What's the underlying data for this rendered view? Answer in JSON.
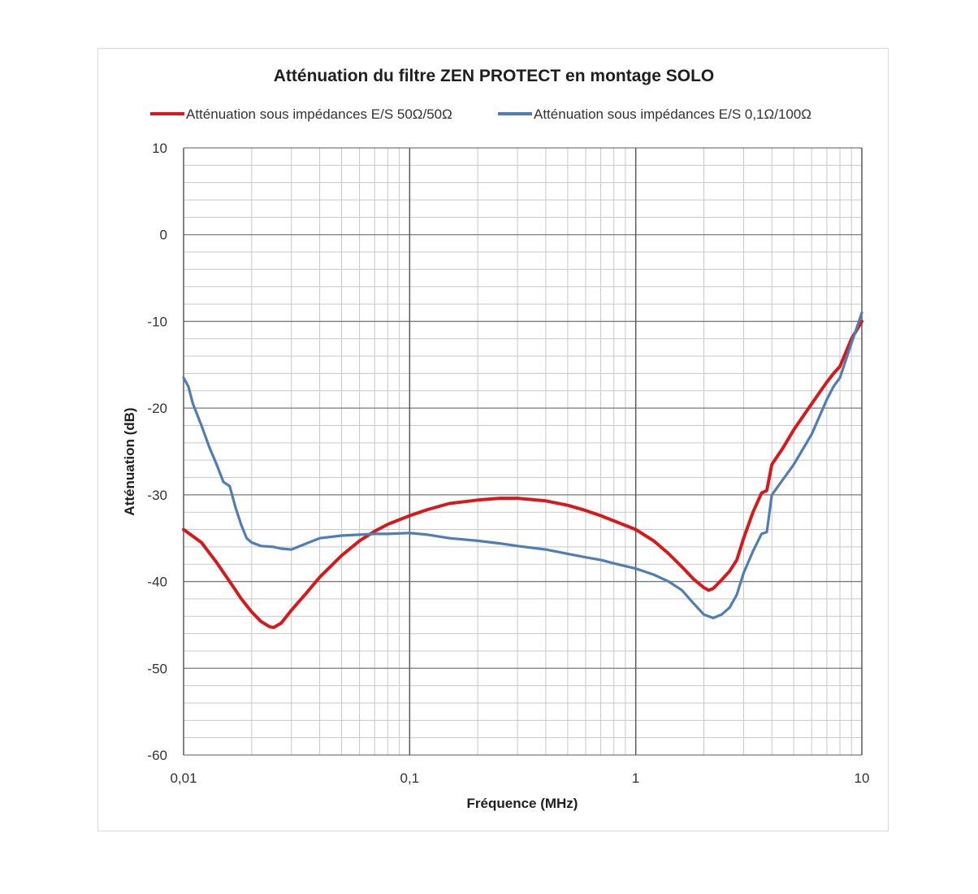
{
  "chart_data": {
    "type": "line",
    "title": "Atténuation du filtre ZEN PROTECT en montage SOLO",
    "xlabel": "Fréquence (MHz)",
    "ylabel": "Atténuation (dB)",
    "x_scale": "log",
    "xlim": [
      0.01,
      10
    ],
    "ylim": [
      -60,
      10
    ],
    "x_ticks": [
      0.01,
      0.1,
      1,
      10
    ],
    "x_tick_labels": [
      "0,01",
      "0,1",
      "1",
      "10"
    ],
    "y_ticks": [
      10,
      0,
      -10,
      -20,
      -30,
      -40,
      -50,
      -60
    ],
    "y_tick_labels": [
      "10",
      "0",
      "-10",
      "-20",
      "-30",
      "-40",
      "-50",
      "-60"
    ],
    "grid": true,
    "legend_position": "top",
    "series": [
      {
        "name": "Atténuation sous impédances E/S 50Ω/50Ω",
        "color": "#d7191c",
        "x": [
          0.01,
          0.012,
          0.014,
          0.016,
          0.018,
          0.02,
          0.022,
          0.024,
          0.025,
          0.027,
          0.03,
          0.035,
          0.04,
          0.05,
          0.06,
          0.07,
          0.08,
          0.1,
          0.12,
          0.15,
          0.2,
          0.25,
          0.3,
          0.4,
          0.5,
          0.6,
          0.7,
          0.8,
          1.0,
          1.2,
          1.4,
          1.6,
          1.8,
          2.0,
          2.1,
          2.2,
          2.4,
          2.6,
          2.8,
          3.0,
          3.3,
          3.6,
          3.8,
          4.0,
          4.5,
          5.0,
          6.0,
          7.0,
          7.5,
          8.0,
          9.0,
          10.0
        ],
        "y": [
          -34.0,
          -35.5,
          -37.8,
          -40.0,
          -42.0,
          -43.5,
          -44.6,
          -45.2,
          -45.3,
          -44.8,
          -43.3,
          -41.3,
          -39.5,
          -37.0,
          -35.3,
          -34.2,
          -33.4,
          -32.4,
          -31.7,
          -31.0,
          -30.6,
          -30.4,
          -30.4,
          -30.7,
          -31.2,
          -31.8,
          -32.4,
          -33.0,
          -34.0,
          -35.3,
          -36.8,
          -38.3,
          -39.7,
          -40.7,
          -41.0,
          -40.8,
          -39.8,
          -38.8,
          -37.5,
          -35.0,
          -32.0,
          -29.8,
          -29.5,
          -26.5,
          -24.5,
          -22.5,
          -19.5,
          -17.0,
          -16.0,
          -15.2,
          -12.0,
          -10.0
        ]
      },
      {
        "name": "Atténuation sous impédances E/S 0,1Ω/100Ω",
        "color": "#4f7db4",
        "x": [
          0.01,
          0.0105,
          0.011,
          0.012,
          0.013,
          0.014,
          0.015,
          0.016,
          0.017,
          0.018,
          0.019,
          0.02,
          0.022,
          0.025,
          0.027,
          0.03,
          0.035,
          0.04,
          0.05,
          0.06,
          0.07,
          0.08,
          0.1,
          0.12,
          0.15,
          0.2,
          0.25,
          0.3,
          0.4,
          0.5,
          0.6,
          0.7,
          0.8,
          1.0,
          1.2,
          1.4,
          1.6,
          1.8,
          2.0,
          2.2,
          2.4,
          2.6,
          2.8,
          3.0,
          3.3,
          3.6,
          3.8,
          4.0,
          5.0,
          6.0,
          7.0,
          7.5,
          8.0,
          9.0,
          10.0
        ],
        "y": [
          -16.5,
          -17.5,
          -19.5,
          -22.0,
          -24.5,
          -26.5,
          -28.5,
          -29.0,
          -31.5,
          -33.5,
          -35.0,
          -35.5,
          -35.9,
          -36.0,
          -36.2,
          -36.3,
          -35.6,
          -35.0,
          -34.7,
          -34.6,
          -34.5,
          -34.5,
          -34.4,
          -34.6,
          -35.0,
          -35.3,
          -35.6,
          -35.9,
          -36.3,
          -36.8,
          -37.2,
          -37.5,
          -37.9,
          -38.5,
          -39.2,
          -40.0,
          -41.0,
          -42.5,
          -43.8,
          -44.2,
          -43.8,
          -43.0,
          -41.5,
          -39.0,
          -36.5,
          -34.5,
          -34.3,
          -30.0,
          -26.5,
          -23.0,
          -19.0,
          -17.5,
          -16.5,
          -12.5,
          -9.0
        ]
      }
    ]
  }
}
